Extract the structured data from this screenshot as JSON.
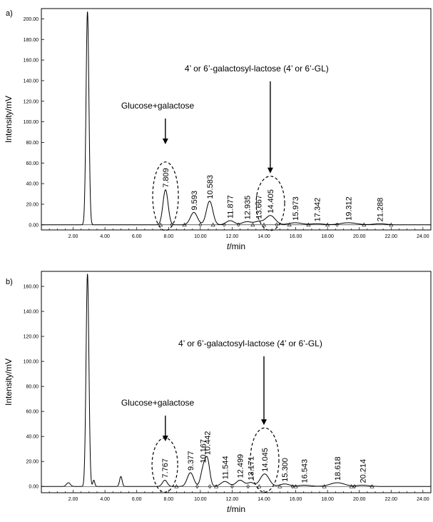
{
  "chart_data": [
    {
      "type": "line",
      "panel_label": "a)",
      "xlabel_italic": "t",
      "xlabel_rest": "/min",
      "ylabel": "Intensity/mV",
      "xlim": [
        0,
        24.5
      ],
      "ylim": [
        -5,
        210
      ],
      "x_ticks": [
        "2.00",
        "4.00",
        "6.00",
        "8.00",
        "10.00",
        "12.00",
        "14.00",
        "16.00",
        "18.00",
        "20.00",
        "22.00",
        "24.00"
      ],
      "y_ticks": [
        "0.00",
        "20.00",
        "40.00",
        "60.00",
        "80.00",
        "100.00",
        "120.00",
        "140.00",
        "160.00",
        "180.00",
        "200.00"
      ],
      "series": [
        {
          "peaks": [
            {
              "rt": 2.9,
              "height": 207,
              "width": 0.09
            },
            {
              "rt": 7.809,
              "height": 34,
              "width": 0.16
            },
            {
              "rt": 9.593,
              "height": 12,
              "width": 0.22
            },
            {
              "rt": 10.583,
              "height": 23,
              "width": 0.2
            },
            {
              "rt": 11.877,
              "height": 4,
              "width": 0.25
            },
            {
              "rt": 12.935,
              "height": 3,
              "width": 0.3
            },
            {
              "rt": 13.667,
              "height": 3,
              "width": 0.25
            },
            {
              "rt": 14.405,
              "height": 9,
              "width": 0.3
            },
            {
              "rt": 15.973,
              "height": 2,
              "width": 0.4
            },
            {
              "rt": 17.342,
              "height": 1,
              "width": 0.4
            },
            {
              "rt": 19.312,
              "height": 2,
              "width": 0.5
            },
            {
              "rt": 21.288,
              "height": 1,
              "width": 0.4
            }
          ]
        }
      ],
      "peak_labels": [
        {
          "rt": 7.809,
          "label": "7.809"
        },
        {
          "rt": 9.593,
          "label": "9.593"
        },
        {
          "rt": 10.583,
          "label": "10.583"
        },
        {
          "rt": 11.877,
          "label": "11.877"
        },
        {
          "rt": 12.935,
          "label": "12.935"
        },
        {
          "rt": 13.667,
          "label": "13.667"
        },
        {
          "rt": 14.405,
          "label": "14.405"
        },
        {
          "rt": 15.973,
          "label": "15.973"
        },
        {
          "rt": 17.342,
          "label": "17.342"
        },
        {
          "rt": 19.312,
          "label": "19.312"
        },
        {
          "rt": 21.288,
          "label": "21.288"
        }
      ],
      "annotations": [
        {
          "text": "Glucose+galactose",
          "arrow_rt": 7.8
        },
        {
          "text": "4’ or 6’-galactosyl-lactose (4’ or 6’-GL)",
          "arrow_rt": 14.4
        }
      ],
      "circled_peaks_rt": [
        7.809,
        14.405
      ],
      "triangle_marks_rt": [
        7.5,
        9.0,
        10.8,
        13.3,
        14.0,
        15.6,
        16.8,
        18.0,
        20.3,
        22.0
      ],
      "diamond_marks_rt": [
        8.2,
        10.0,
        11.5,
        12.4,
        14.8,
        18.6
      ]
    },
    {
      "type": "line",
      "panel_label": "b)",
      "xlabel_italic": "t",
      "xlabel_rest": "/min",
      "ylabel": "Intensity/mV",
      "xlim": [
        0,
        24.5
      ],
      "ylim": [
        -5,
        172
      ],
      "x_ticks": [
        "2.00",
        "4.00",
        "6.00",
        "8.00",
        "10.00",
        "12.00",
        "14.00",
        "16.00",
        "18.00",
        "20.00",
        "22.00",
        "24.00"
      ],
      "y_ticks": [
        "0.00",
        "20.00",
        "40.00",
        "60.00",
        "80.00",
        "100.00",
        "120.00",
        "140.00",
        "160.00"
      ],
      "series": [
        {
          "peaks": [
            {
              "rt": 1.7,
              "height": 3,
              "width": 0.12
            },
            {
              "rt": 2.9,
              "height": 170,
              "width": 0.09
            },
            {
              "rt": 3.3,
              "height": 5,
              "width": 0.06
            },
            {
              "rt": 5.0,
              "height": 8,
              "width": 0.08
            },
            {
              "rt": 7.767,
              "height": 5,
              "width": 0.15
            },
            {
              "rt": 9.377,
              "height": 11,
              "width": 0.2
            },
            {
              "rt": 10.167,
              "height": 13,
              "width": 0.15
            },
            {
              "rt": 10.442,
              "height": 21,
              "width": 0.15
            },
            {
              "rt": 11.544,
              "height": 4,
              "width": 0.25
            },
            {
              "rt": 12.499,
              "height": 5,
              "width": 0.25
            },
            {
              "rt": 13.171,
              "height": 3,
              "width": 0.2
            },
            {
              "rt": 14.045,
              "height": 10,
              "width": 0.28
            },
            {
              "rt": 15.3,
              "height": 2,
              "width": 0.3
            },
            {
              "rt": 16.543,
              "height": 1,
              "width": 0.4
            },
            {
              "rt": 18.618,
              "height": 3,
              "width": 0.45
            },
            {
              "rt": 20.214,
              "height": 1,
              "width": 0.4
            }
          ]
        }
      ],
      "peak_labels": [
        {
          "rt": 7.767,
          "label": "7.767"
        },
        {
          "rt": 9.377,
          "label": "9.377"
        },
        {
          "rt": 10.167,
          "label": "10.167"
        },
        {
          "rt": 10.442,
          "label": "10.442"
        },
        {
          "rt": 11.544,
          "label": "11.544"
        },
        {
          "rt": 12.499,
          "label": "12.499"
        },
        {
          "rt": 13.171,
          "label": "13.171"
        },
        {
          "rt": 14.045,
          "label": "14.045"
        },
        {
          "rt": 15.3,
          "label": "15.300"
        },
        {
          "rt": 16.543,
          "label": "16.543"
        },
        {
          "rt": 18.618,
          "label": "18.618"
        },
        {
          "rt": 20.214,
          "label": "20.214"
        }
      ],
      "annotations": [
        {
          "text": "Glucose+galactose",
          "arrow_rt": 7.8
        },
        {
          "text": "4’ or 6’-galactosyl-lactose (4’ or 6’-GL)",
          "arrow_rt": 14.0
        }
      ],
      "circled_peaks_rt": [
        7.767,
        14.045
      ],
      "triangle_marks_rt": [
        8.5,
        11.0,
        13.7,
        15.0,
        16.0,
        17.8,
        19.5,
        20.8
      ],
      "diamond_marks_rt": [
        9.8,
        10.6,
        12.0,
        13.0,
        15.8,
        19.7
      ]
    }
  ]
}
